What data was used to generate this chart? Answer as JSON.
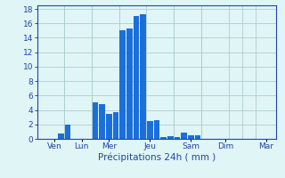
{
  "bar_values": [
    0,
    0,
    0,
    0.7,
    2.0,
    0,
    0,
    0,
    5.0,
    4.8,
    3.5,
    3.7,
    15.0,
    15.3,
    17.0,
    17.3,
    2.5,
    2.6,
    0.3,
    0.35,
    0.3,
    0.9,
    0.5,
    0.5,
    0,
    0,
    0,
    0,
    0,
    0,
    0,
    0,
    0,
    0,
    0
  ],
  "n_bars": 35,
  "day_labels": [
    "Ven",
    "Lun",
    "Mer",
    "Jeu",
    "Sam",
    "Dim",
    "Mar"
  ],
  "day_tick_positions": [
    2,
    6,
    10,
    16,
    22,
    27,
    33
  ],
  "day_vline_positions": [
    4,
    8,
    12,
    20,
    24,
    30
  ],
  "ylabel_values": [
    0,
    2,
    4,
    6,
    8,
    10,
    12,
    14,
    16,
    18
  ],
  "ylim": [
    0,
    18.5
  ],
  "xlabel": "Précipitations 24h ( mm )",
  "bar_color": "#1a6fdb",
  "bg_color": "#e0f5f5",
  "grid_color": "#aecece",
  "axis_color": "#2244aa",
  "label_color": "#2244aa",
  "tick_label_size": 6.5,
  "xlabel_size": 7.5
}
